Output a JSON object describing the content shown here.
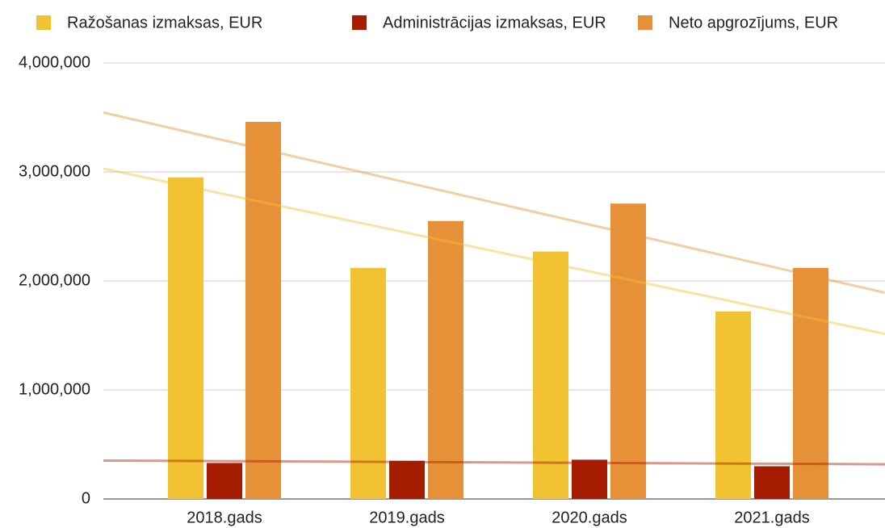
{
  "chart_data": {
    "type": "bar",
    "categories": [
      "2018.gads",
      "2019.gads",
      "2020.gads",
      "2021.gads"
    ],
    "series": [
      {
        "name": "Ražošanas izmaksas, EUR",
        "color": "#f1c232",
        "values": [
          2950000,
          2120000,
          2270000,
          1720000
        ]
      },
      {
        "name": "Administrācijas izmaksas, EUR",
        "color": "#a61c00",
        "values": [
          330000,
          350000,
          360000,
          300000
        ]
      },
      {
        "name": "Neto apgrozījums, EUR",
        "color": "#e69138",
        "values": [
          3460000,
          2550000,
          2710000,
          2120000
        ]
      }
    ],
    "ylim": [
      0,
      4000000
    ],
    "yticks": [
      0,
      {
        "value": 1000000,
        "label": "1,000,000"
      },
      {
        "value": 2000000,
        "label": "2,000,000"
      },
      {
        "value": 3000000,
        "label": "3,000,000"
      },
      {
        "value": 4000000,
        "label": "4,000,000"
      }
    ],
    "grid": true,
    "legend": "top",
    "trendlines": true
  }
}
